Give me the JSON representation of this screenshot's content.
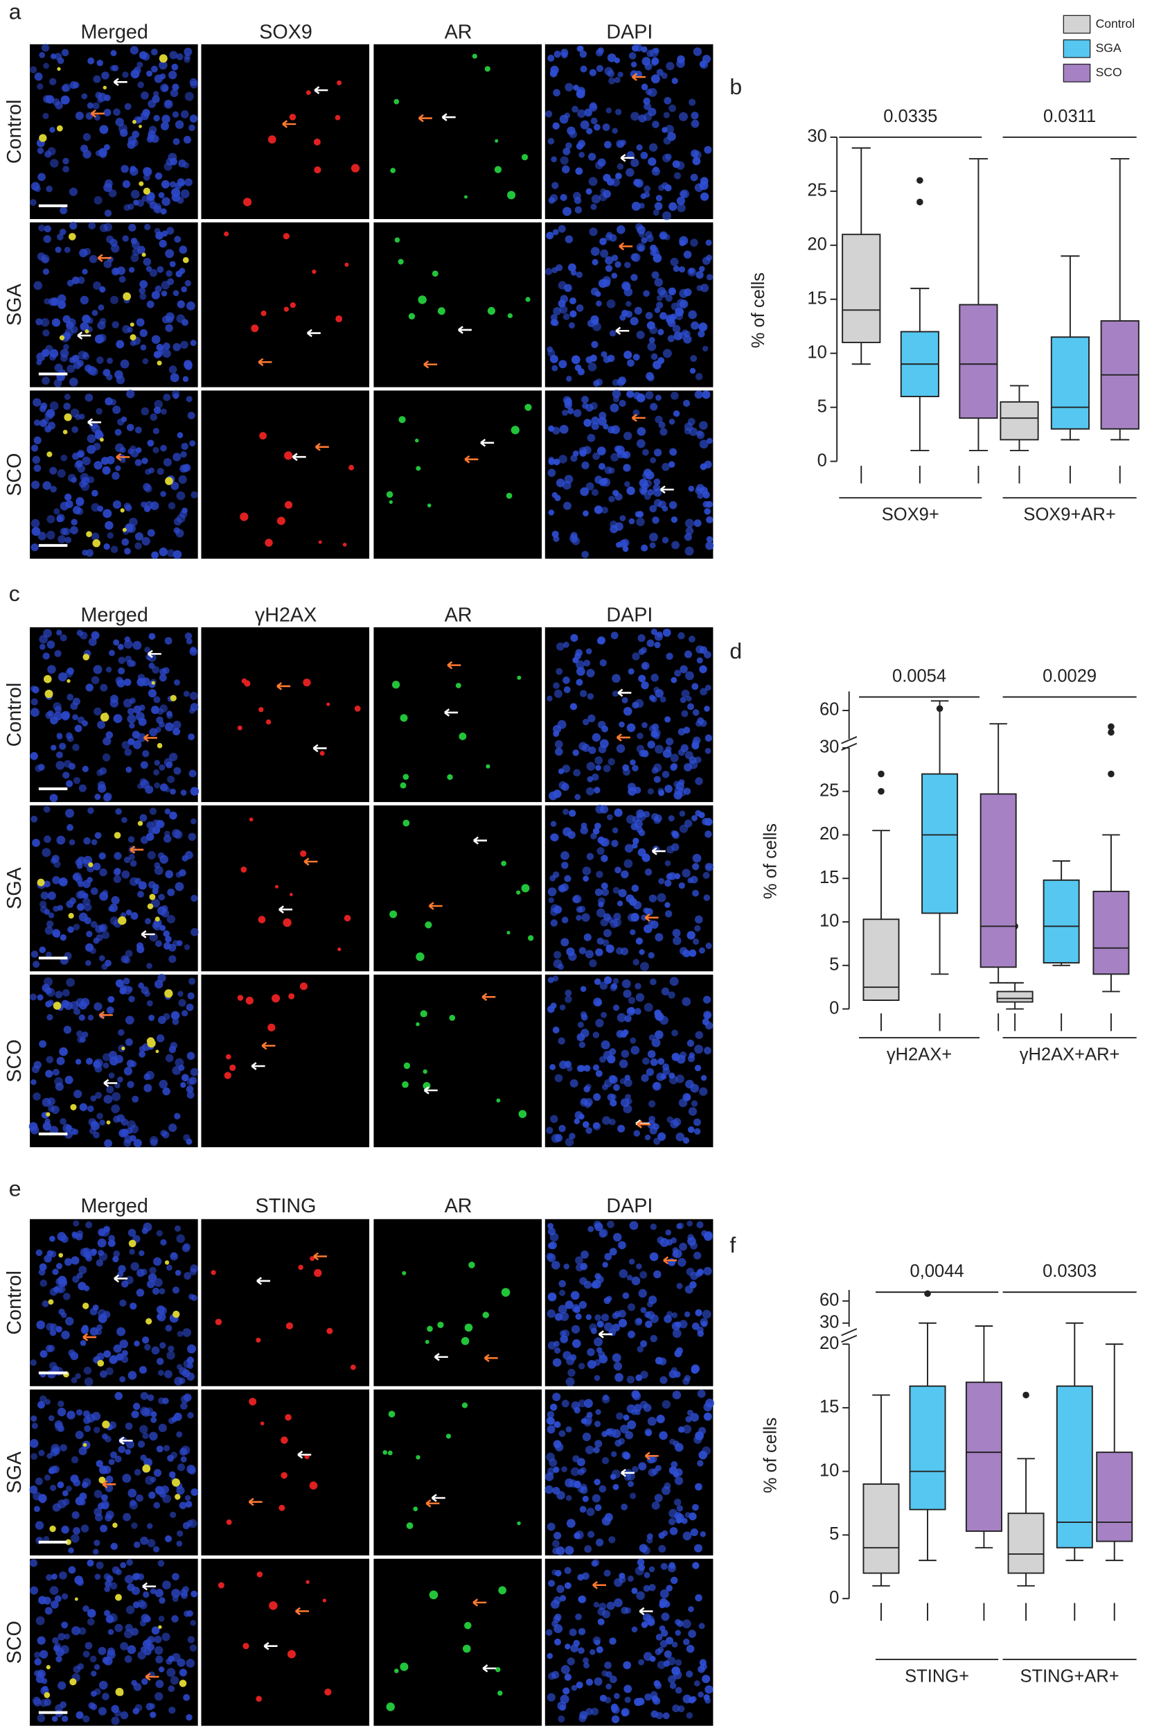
{
  "panels": [
    {
      "letter": "a",
      "columns": [
        "Merged",
        "SOX9",
        "AR",
        "DAPI"
      ],
      "rows": [
        "Control",
        "SGA",
        "SCO"
      ]
    },
    {
      "letter": "c",
      "columns": [
        "Merged",
        "γH2AX",
        "AR",
        "DAPI"
      ],
      "rows": [
        "Control",
        "SGA",
        "SCO"
      ]
    },
    {
      "letter": "e",
      "columns": [
        "Merged",
        "STING",
        "AR",
        "DAPI"
      ],
      "rows": [
        "Control",
        "SGA",
        "SCO"
      ]
    }
  ],
  "chart_data": [
    {
      "type": "box",
      "panel": "b",
      "ylabel": "% of cells",
      "categories": [
        "SOX9+",
        "SOX9+AR+"
      ],
      "significance": [
        "0.0335",
        "0.0311"
      ],
      "ylim": [
        0,
        30
      ],
      "yticks": [
        0,
        5,
        10,
        15,
        20,
        25,
        30
      ],
      "series": [
        {
          "name": "Control",
          "color": "#d3d3d3",
          "values": [
            {
              "min": 9,
              "q1": 11,
              "median": 14,
              "q3": 21,
              "max": 29,
              "outliers": []
            },
            {
              "min": 1,
              "q1": 2,
              "median": 4,
              "q3": 5.5,
              "max": 7,
              "outliers": []
            }
          ]
        },
        {
          "name": "SGA",
          "color": "#56c7f0",
          "values": [
            {
              "min": 1,
              "q1": 6,
              "median": 9,
              "q3": 12,
              "max": 16,
              "outliers": [
                24,
                26
              ]
            },
            {
              "min": 2,
              "q1": 3,
              "median": 5,
              "q3": 11.5,
              "max": 19,
              "outliers": []
            }
          ]
        },
        {
          "name": "SCO",
          "color": "#a681c4",
          "values": [
            {
              "min": 1,
              "q1": 4,
              "median": 9,
              "q3": 14.5,
              "max": 28,
              "outliers": []
            },
            {
              "min": 2,
              "q1": 3,
              "median": 8,
              "q3": 13,
              "max": 28,
              "outliers": []
            }
          ]
        }
      ]
    },
    {
      "type": "box",
      "panel": "d",
      "ylabel": "% of cells",
      "categories": [
        "γH2AX+",
        "γH2AX+AR+"
      ],
      "significance": [
        "0.0054",
        "0.0029"
      ],
      "ylim": [
        0,
        30
      ],
      "yticks": [
        0,
        5,
        10,
        15,
        20,
        25,
        30
      ],
      "ylim_upper": [
        45,
        70
      ],
      "yticks_upper": [
        60
      ],
      "series": [
        {
          "color": "#d3d3d3",
          "values": [
            {
              "min": 1,
              "q1": 1,
              "median": 2.5,
              "q3": 10.3,
              "max": 20.5,
              "outliers": [
                25,
                27
              ]
            },
            {
              "min": 0,
              "q1": 0.8,
              "median": 1.2,
              "q3": 2,
              "max": 3,
              "outliers": [
                9.5
              ]
            }
          ]
        },
        {
          "color": "#56c7f0",
          "values": [
            {
              "min": 4,
              "q1": 11,
              "median": 20,
              "q3": 27,
              "max": 65,
              "outliers": [
                61
              ]
            },
            {
              "min": 5,
              "q1": 5.3,
              "median": 9.5,
              "q3": 14.8,
              "max": 17,
              "outliers": []
            }
          ]
        },
        {
          "color": "#a681c4",
          "values": [
            {
              "min": 3,
              "q1": 4.8,
              "median": 9.5,
              "q3": 24.7,
              "max": 53,
              "outliers": []
            },
            {
              "min": 2,
              "q1": 4,
              "median": 7,
              "q3": 13.5,
              "max": 20,
              "outliers": [
                27,
                48.5,
                51.5
              ]
            }
          ]
        }
      ]
    },
    {
      "type": "box",
      "panel": "f",
      "ylabel": "% of cells",
      "categories": [
        "STING+",
        "STING+AR+"
      ],
      "significance": [
        "0,0044",
        "0.0303"
      ],
      "ylim": [
        0,
        20
      ],
      "yticks": [
        0,
        5,
        10,
        15,
        20
      ],
      "ylim_upper": [
        25,
        75
      ],
      "yticks_upper": [
        30,
        60
      ],
      "series": [
        {
          "color": "#d3d3d3",
          "values": [
            {
              "min": 1,
              "q1": 2,
              "median": 4,
              "q3": 9,
              "max": 16,
              "outliers": []
            },
            {
              "min": 1,
              "q1": 2,
              "median": 3.5,
              "q3": 6.7,
              "max": 11,
              "outliers": [
                16
              ]
            }
          ]
        },
        {
          "color": "#56c7f0",
          "values": [
            {
              "min": 3,
              "q1": 7,
              "median": 10,
              "q3": 16.7,
              "max": 30,
              "outliers": [
                70
              ]
            },
            {
              "min": 3,
              "q1": 4,
              "median": 6,
              "q3": 16.7,
              "max": 30,
              "outliers": []
            }
          ]
        },
        {
          "color": "#a681c4",
          "values": [
            {
              "min": 4,
              "q1": 5.3,
              "median": 11.5,
              "q3": 17,
              "max": 26,
              "outliers": []
            },
            {
              "min": 3,
              "q1": 4.5,
              "median": 6,
              "q3": 11.5,
              "max": 20,
              "outliers": []
            }
          ]
        }
      ]
    }
  ]
}
